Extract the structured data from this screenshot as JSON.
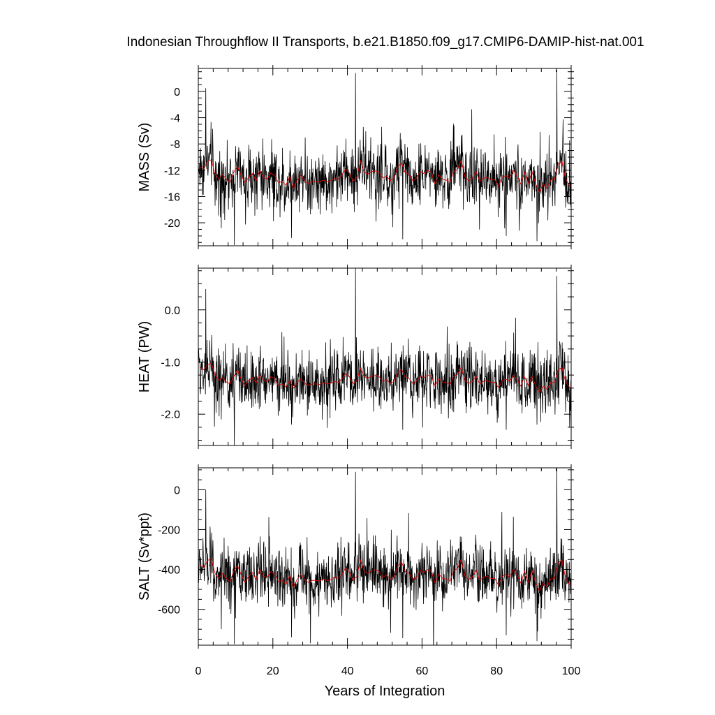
{
  "chart_data": {
    "type": "line",
    "title": "Indonesian Throughflow II Transports, b.e21.B1850.f09_g17.CMIP6-DAMIP-hist-nat.001",
    "xlabel": "Years of Integration",
    "xlim": [
      0,
      100
    ],
    "xticks": [
      0,
      20,
      40,
      60,
      80,
      100
    ],
    "xticklabels": [
      "0",
      "20",
      "40",
      "60",
      "80",
      "100"
    ],
    "legend": "none",
    "grid": false,
    "series_colors": {
      "monthly": "#000000",
      "annual_mean": "#e00000"
    },
    "panels": [
      {
        "ylabel": "MASS (Sv)",
        "ylim": [
          -23.5,
          3.5
        ],
        "yticks": [
          0,
          -4,
          -8,
          -12,
          -16,
          -20
        ],
        "yticklabels": [
          "0",
          "-4",
          "-8",
          "-12",
          "-16",
          "-20"
        ],
        "mean": -13.2,
        "spread": 2.6,
        "spikes": [
          [
            42.2,
            2.8
          ],
          [
            96.2,
            3.3
          ],
          [
            2.0,
            0.5
          ],
          [
            9.7,
            -23.4
          ],
          [
            25.0,
            -22.3
          ],
          [
            54.8,
            -22.5
          ],
          [
            82.6,
            -22.0
          ],
          [
            90.8,
            -22.8
          ],
          [
            6.2,
            -20.8
          ]
        ],
        "annual_mean": [
          -11.5,
          -11.8,
          -10.7,
          -10.4,
          -12.6,
          -13.3,
          -12.6,
          -13.4,
          -13.8,
          -12.3,
          -11.4,
          -12.8,
          -13.9,
          -13.1,
          -12.5,
          -13.6,
          -12.0,
          -13.1,
          -13.3,
          -12.4,
          -12.8,
          -13.9,
          -13.7,
          -14.3,
          -12.9,
          -14.8,
          -13.6,
          -12.8,
          -13.6,
          -14.0,
          -13.7,
          -13.7,
          -13.8,
          -13.5,
          -13.7,
          -13.6,
          -13.2,
          -13.4,
          -12.8,
          -11.8,
          -12.4,
          -13.7,
          -13.1,
          -10.6,
          -12.3,
          -12.6,
          -12.2,
          -12.1,
          -12.3,
          -13.2,
          -12.9,
          -13.6,
          -13.2,
          -11.5,
          -10.9,
          -12.4,
          -12.6,
          -13.6,
          -13.2,
          -12.2,
          -12.5,
          -12.0,
          -12.3,
          -14.1,
          -12.7,
          -13.4,
          -13.5,
          -13.8,
          -12.2,
          -11.9,
          -10.5,
          -13.0,
          -13.6,
          -13.2,
          -12.2,
          -13.7,
          -13.2,
          -13.1,
          -13.4,
          -13.4,
          -14.4,
          -13.1,
          -12.8,
          -13.2,
          -12.0,
          -12.9,
          -14.1,
          -12.3,
          -14.0,
          -12.2,
          -14.1,
          -15.4,
          -14.1,
          -14.7,
          -13.5,
          -13.4,
          -11.1,
          -10.6,
          -13.3,
          -14.3,
          -14.5
        ]
      },
      {
        "ylabel": "HEAT (PW)",
        "ylim": [
          -2.6,
          0.8
        ],
        "yticks": [
          0.0,
          -1.0,
          -2.0
        ],
        "yticklabels": [
          "0.0",
          "-1.0",
          "-2.0"
        ],
        "mean": -1.32,
        "spread": 0.33,
        "spikes": [
          [
            42.2,
            0.8
          ],
          [
            96.2,
            0.65
          ],
          [
            2.0,
            0.4
          ],
          [
            9.7,
            -2.6
          ],
          [
            25.0,
            -2.2
          ],
          [
            54.8,
            -2.3
          ],
          [
            82.6,
            -2.3
          ],
          [
            90.8,
            -2.2
          ],
          [
            6.2,
            -2.1
          ]
        ],
        "annual_mean": [
          -1.1,
          -1.15,
          -1.05,
          -1.02,
          -1.25,
          -1.35,
          -1.3,
          -1.38,
          -1.42,
          -1.28,
          -1.15,
          -1.33,
          -1.45,
          -1.35,
          -1.3,
          -1.4,
          -1.25,
          -1.35,
          -1.38,
          -1.28,
          -1.32,
          -1.45,
          -1.42,
          -1.48,
          -1.35,
          -1.5,
          -1.4,
          -1.32,
          -1.4,
          -1.45,
          -1.42,
          -1.42,
          -1.43,
          -1.4,
          -1.42,
          -1.41,
          -1.37,
          -1.39,
          -1.33,
          -1.22,
          -1.28,
          -1.42,
          -1.36,
          -1.12,
          -1.28,
          -1.31,
          -1.27,
          -1.26,
          -1.28,
          -1.37,
          -1.34,
          -1.41,
          -1.37,
          -1.2,
          -1.14,
          -1.29,
          -1.31,
          -1.41,
          -1.37,
          -1.27,
          -1.3,
          -1.25,
          -1.28,
          -1.46,
          -1.32,
          -1.39,
          -1.4,
          -1.43,
          -1.27,
          -1.24,
          -1.1,
          -1.35,
          -1.41,
          -1.37,
          -1.27,
          -1.42,
          -1.37,
          -1.36,
          -1.39,
          -1.39,
          -1.49,
          -1.36,
          -1.33,
          -1.37,
          -1.25,
          -1.34,
          -1.46,
          -1.28,
          -1.45,
          -1.27,
          -1.46,
          -1.58,
          -1.46,
          -1.52,
          -1.4,
          -1.39,
          -1.16,
          -1.1,
          -1.38,
          -1.48,
          -1.5
        ]
      },
      {
        "ylabel": "SALT (Sv*ppt)",
        "ylim": [
          -780,
          110
        ],
        "yticks": [
          0,
          -200,
          -400,
          -600
        ],
        "yticklabels": [
          "0",
          "-200",
          "-400",
          "-600"
        ],
        "mean": -440,
        "spread": 85,
        "spikes": [
          [
            42.2,
            90
          ],
          [
            96.2,
            110
          ],
          [
            2.0,
            0
          ],
          [
            9.7,
            -775
          ],
          [
            25.0,
            -740
          ],
          [
            54.8,
            -745
          ],
          [
            82.6,
            -730
          ],
          [
            90.8,
            -760
          ],
          [
            6.2,
            -700
          ]
        ],
        "annual_mean": [
          -380,
          -390,
          -355,
          -345,
          -420,
          -445,
          -420,
          -445,
          -460,
          -410,
          -380,
          -425,
          -465,
          -435,
          -415,
          -450,
          -400,
          -435,
          -440,
          -410,
          -425,
          -460,
          -455,
          -475,
          -430,
          -490,
          -450,
          -425,
          -450,
          -465,
          -455,
          -455,
          -458,
          -448,
          -455,
          -452,
          -438,
          -445,
          -425,
          -392,
          -412,
          -455,
          -435,
          -352,
          -410,
          -420,
          -405,
          -402,
          -410,
          -438,
          -428,
          -450,
          -438,
          -382,
          -362,
          -412,
          -420,
          -450,
          -438,
          -405,
          -415,
          -400,
          -410,
          -468,
          -422,
          -445,
          -448,
          -458,
          -405,
          -395,
          -350,
          -432,
          -450,
          -438,
          -405,
          -455,
          -438,
          -435,
          -445,
          -445,
          -478,
          -435,
          -425,
          -438,
          -400,
          -428,
          -468,
          -408,
          -465,
          -405,
          -468,
          -510,
          -468,
          -488,
          -448,
          -445,
          -368,
          -352,
          -442,
          -475,
          -482
        ]
      }
    ]
  }
}
